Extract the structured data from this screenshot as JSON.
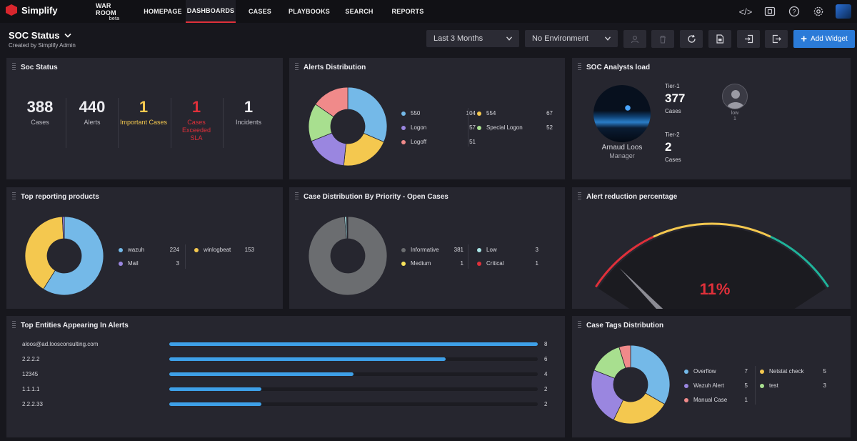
{
  "app": {
    "name": "Simplify"
  },
  "nav": [
    {
      "label": "WAR ROOM",
      "sub": "beta"
    },
    {
      "label": "HOMEPAGE"
    },
    {
      "label": "DASHBOARDS"
    },
    {
      "label": "CASES"
    },
    {
      "label": "PLAYBOOKS"
    },
    {
      "label": "SEARCH"
    },
    {
      "label": "REPORTS"
    }
  ],
  "nav_icons": [
    "code-icon",
    "briefcase-icon",
    "help-icon",
    "settings-icon"
  ],
  "dashboard": {
    "title": "SOC Status",
    "subtitle": "Created by Simplify Admin",
    "time_range": "Last 3 Months",
    "environment": "No Environment",
    "add_widget": "Add Widget"
  },
  "colors": {
    "accent": "#2b7bd8",
    "blue": "#74b9e8",
    "yellow": "#f4c84f",
    "purple": "#9a86e0",
    "green": "#a8df8f",
    "pink": "#f08a8a",
    "gray": "#6b6d70",
    "red": "#e0303a",
    "teal": "#1fb39a"
  },
  "soc_status": {
    "title": "Soc Status",
    "stats": [
      {
        "value": "388",
        "label": "Cases",
        "color": "#ececf0"
      },
      {
        "value": "440",
        "label": "Alerts",
        "color": "#ececf0"
      },
      {
        "value": "1",
        "label": "Important Cases",
        "color": "#f4c84f"
      },
      {
        "value": "1",
        "label": "Cases Exceeded SLA",
        "color": "#e0303a"
      },
      {
        "value": "1",
        "label": "Incidents",
        "color": "#ececf0"
      }
    ]
  },
  "alerts_distribution": {
    "title": "Alerts Distribution",
    "legend": [
      {
        "name": "550",
        "value": "104",
        "color": "#74b9e8"
      },
      {
        "name": "554",
        "value": "67",
        "color": "#f4c84f"
      },
      {
        "name": "Logon",
        "value": "57",
        "color": "#9a86e0"
      },
      {
        "name": "Special Logon",
        "value": "52",
        "color": "#a8df8f"
      },
      {
        "name": "Logoff",
        "value": "51",
        "color": "#f08a8a"
      }
    ]
  },
  "analysts": {
    "title": "SOC Analysts load",
    "name": "Arnaud Loos",
    "role": "Manager",
    "tier1_label": "Tier-1",
    "tier1_value": "377",
    "tier1_unit": "Cases",
    "tier2_label": "Tier-2",
    "tier2_value": "2",
    "tier2_unit": "Cases",
    "other_label": "low",
    "other_value": "1"
  },
  "top_products": {
    "title": "Top reporting products",
    "legend": [
      {
        "name": "wazuh",
        "value": "224",
        "color": "#74b9e8"
      },
      {
        "name": "winlogbeat",
        "value": "153",
        "color": "#f4c84f"
      },
      {
        "name": "Mail",
        "value": "3",
        "color": "#9a86e0"
      }
    ]
  },
  "case_priority": {
    "title": "Case Distribution By Priority - Open Cases",
    "legend": [
      {
        "name": "Informative",
        "value": "381",
        "color": "#6b6d70"
      },
      {
        "name": "Low",
        "value": "3",
        "color": "#a9e4e6"
      },
      {
        "name": "Medium",
        "value": "1",
        "color": "#f8e35b"
      },
      {
        "name": "Critical",
        "value": "1",
        "color": "#e0303a"
      }
    ]
  },
  "alert_reduction": {
    "title": "Alert reduction percentage",
    "percent": 11,
    "label": "11%"
  },
  "top_entities": {
    "title": "Top Entities Appearing In Alerts",
    "max": 8,
    "rows": [
      {
        "label": "aloos@ad.loosconsulting.com",
        "value": 8
      },
      {
        "label": "2.2.2.2",
        "value": 6
      },
      {
        "label": "12345",
        "value": 4
      },
      {
        "label": "1.1.1.1",
        "value": 2
      },
      {
        "label": "2.2.2.33",
        "value": 2
      }
    ]
  },
  "case_tags": {
    "title": "Case Tags Distribution",
    "legend": [
      {
        "name": "Overflow",
        "value": "7",
        "color": "#74b9e8"
      },
      {
        "name": "Netstat check",
        "value": "5",
        "color": "#f4c84f"
      },
      {
        "name": "Wazuh Alert",
        "value": "5",
        "color": "#9a86e0"
      },
      {
        "name": "test",
        "value": "3",
        "color": "#a8df8f"
      },
      {
        "name": "Manual Case",
        "value": "1",
        "color": "#f08a8a"
      }
    ]
  },
  "chart_data": [
    {
      "type": "pie",
      "title": "Alerts Distribution",
      "categories": [
        "550",
        "554",
        "Logon",
        "Special Logon",
        "Logoff"
      ],
      "values": [
        104,
        67,
        57,
        52,
        51
      ],
      "colors": [
        "#74b9e8",
        "#f4c84f",
        "#9a86e0",
        "#a8df8f",
        "#f08a8a"
      ],
      "donut": true,
      "legend": "right"
    },
    {
      "type": "pie",
      "title": "Top reporting products",
      "categories": [
        "wazuh",
        "winlogbeat",
        "Mail"
      ],
      "values": [
        224,
        153,
        3
      ],
      "colors": [
        "#74b9e8",
        "#f4c84f",
        "#9a86e0"
      ],
      "donut": true,
      "legend": "right"
    },
    {
      "type": "pie",
      "title": "Case Distribution By Priority - Open Cases",
      "categories": [
        "Informative",
        "Low",
        "Medium",
        "Critical"
      ],
      "values": [
        381,
        3,
        1,
        1
      ],
      "colors": [
        "#6b6d70",
        "#a9e4e6",
        "#f8e35b",
        "#e0303a"
      ],
      "donut": true,
      "legend": "right"
    },
    {
      "type": "bar",
      "title": "Top Entities Appearing In Alerts",
      "categories": [
        "aloos@ad.loosconsulting.com",
        "2.2.2.2",
        "12345",
        "1.1.1.1",
        "2.2.2.33"
      ],
      "values": [
        8,
        6,
        4,
        2,
        2
      ],
      "orientation": "horizontal"
    },
    {
      "type": "pie",
      "title": "Case Tags Distribution",
      "categories": [
        "Overflow",
        "Netstat check",
        "Wazuh Alert",
        "test",
        "Manual Case"
      ],
      "values": [
        7,
        5,
        5,
        3,
        1
      ],
      "colors": [
        "#74b9e8",
        "#f4c84f",
        "#9a86e0",
        "#a8df8f",
        "#f08a8a"
      ],
      "donut": true,
      "legend": "right"
    }
  ]
}
